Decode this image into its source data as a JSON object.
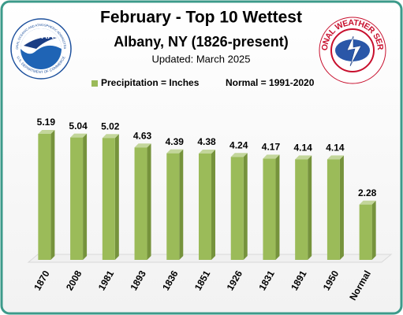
{
  "chart_data": {
    "type": "bar3d",
    "title": "February - Top 10 Wettest",
    "subtitle": "Albany, NY (1826-present)",
    "note": "Updated: March 2025",
    "legend_items": [
      "Precipitation = Inches",
      "Normal = 1991-2020"
    ],
    "categories": [
      "1870",
      "2008",
      "1981",
      "1893",
      "1836",
      "1851",
      "1926",
      "1831",
      "1891",
      "1950",
      "Normal"
    ],
    "values": [
      5.19,
      5.04,
      5.02,
      4.63,
      4.39,
      4.38,
      4.24,
      4.17,
      4.14,
      4.14,
      2.28
    ],
    "color": "#9bbb59",
    "ylim": [
      0,
      6
    ],
    "logos": {
      "noaa": "NOAA",
      "noaa_ring_top": "NATIONAL OCEANIC AND ATMOSPHERIC ADMINISTRATION",
      "noaa_ring_bottom": "U.S. DEPARTMENT OF COMMERCE",
      "nws": "NATIONAL WEATHER SERVICE"
    }
  }
}
